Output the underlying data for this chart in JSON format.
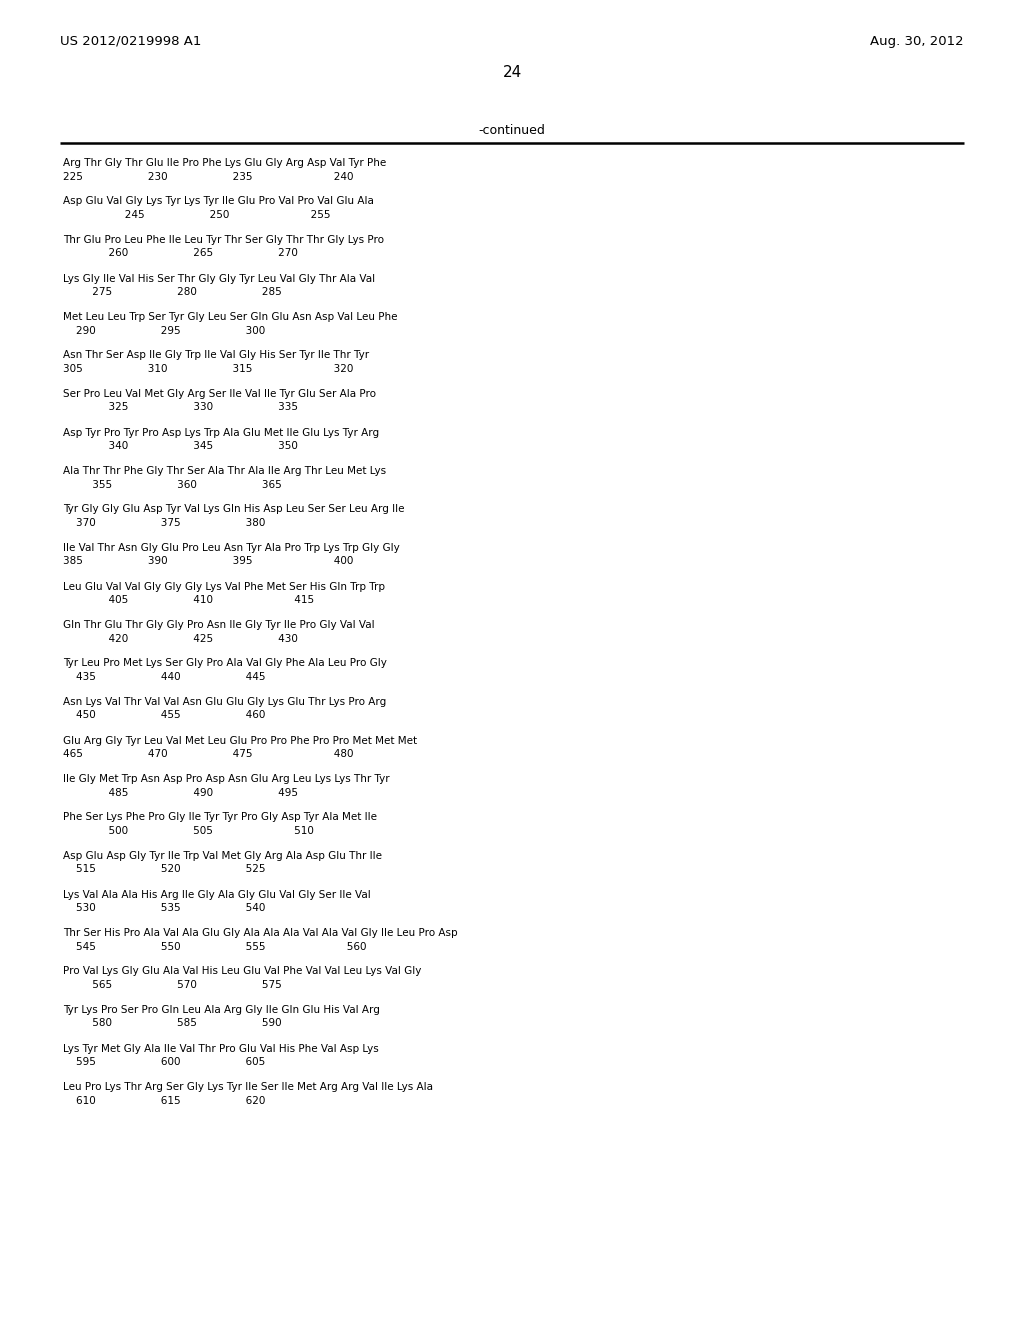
{
  "header_left": "US 2012/0219998 A1",
  "header_right": "Aug. 30, 2012",
  "page_number": "24",
  "continued_text": "-continued",
  "background_color": "#ffffff",
  "text_color": "#000000",
  "sequence_blocks": [
    {
      "aa": "Arg Thr Gly Thr Glu Ile Pro Phe Lys Glu Gly Arg Asp Val Tyr Phe",
      "num": "225                    230                    235                         240"
    },
    {
      "aa": "Asp Glu Val Gly Lys Tyr Lys Tyr Ile Glu Pro Val Pro Val Glu Ala",
      "num": "                   245                    250                         255"
    },
    {
      "aa": "Thr Glu Pro Leu Phe Ile Leu Tyr Thr Ser Gly Thr Thr Gly Lys Pro",
      "num": "              260                    265                    270"
    },
    {
      "aa": "Lys Gly Ile Val His Ser Thr Gly Gly Tyr Leu Val Gly Thr Ala Val",
      "num": "         275                    280                    285"
    },
    {
      "aa": "Met Leu Leu Trp Ser Tyr Gly Leu Ser Gln Glu Asn Asp Val Leu Phe",
      "num": "    290                    295                    300"
    },
    {
      "aa": "Asn Thr Ser Asp Ile Gly Trp Ile Val Gly His Ser Tyr Ile Thr Tyr",
      "num": "305                    310                    315                         320"
    },
    {
      "aa": "Ser Pro Leu Val Met Gly Arg Ser Ile Val Ile Tyr Glu Ser Ala Pro",
      "num": "              325                    330                    335"
    },
    {
      "aa": "Asp Tyr Pro Tyr Pro Asp Lys Trp Ala Glu Met Ile Glu Lys Tyr Arg",
      "num": "              340                    345                    350"
    },
    {
      "aa": "Ala Thr Thr Phe Gly Thr Ser Ala Thr Ala Ile Arg Thr Leu Met Lys",
      "num": "         355                    360                    365"
    },
    {
      "aa": "Tyr Gly Gly Glu Asp Tyr Val Lys Gln His Asp Leu Ser Ser Leu Arg Ile",
      "num": "    370                    375                    380"
    },
    {
      "aa": "Ile Val Thr Asn Gly Glu Pro Leu Asn Tyr Ala Pro Trp Lys Trp Gly Gly",
      "num": "385                    390                    395                         400"
    },
    {
      "aa": "Leu Glu Val Val Gly Gly Gly Lys Val Phe Met Ser His Gln Trp Trp",
      "num": "              405                    410                         415"
    },
    {
      "aa": "Gln Thr Glu Thr Gly Gly Pro Asn Ile Gly Tyr Ile Pro Gly Val Val",
      "num": "              420                    425                    430"
    },
    {
      "aa": "Tyr Leu Pro Met Lys Ser Gly Pro Ala Val Gly Phe Ala Leu Pro Gly",
      "num": "    435                    440                    445"
    },
    {
      "aa": "Asn Lys Val Thr Val Val Asn Glu Glu Gly Lys Glu Thr Lys Pro Arg",
      "num": "    450                    455                    460"
    },
    {
      "aa": "Glu Arg Gly Tyr Leu Val Met Leu Glu Pro Pro Phe Pro Pro Met Met Met",
      "num": "465                    470                    475                         480"
    },
    {
      "aa": "Ile Gly Met Trp Asn Asp Pro Asp Asn Glu Arg Leu Lys Lys Thr Tyr",
      "num": "              485                    490                    495"
    },
    {
      "aa": "Phe Ser Lys Phe Pro Gly Ile Tyr Tyr Pro Gly Asp Tyr Ala Met Ile",
      "num": "              500                    505                         510"
    },
    {
      "aa": "Asp Glu Asp Gly Tyr Ile Trp Val Met Gly Arg Ala Asp Glu Thr Ile",
      "num": "    515                    520                    525"
    },
    {
      "aa": "Lys Val Ala Ala His Arg Ile Gly Ala Gly Glu Val Gly Ser Ile Val",
      "num": "    530                    535                    540"
    },
    {
      "aa": "Thr Ser His Pro Ala Val Ala Glu Gly Ala Ala Ala Val Ala Val Gly Ile Leu Pro Asp",
      "num": "    545                    550                    555                         560"
    },
    {
      "aa": "Pro Val Lys Gly Glu Ala Val His Leu Glu Val Phe Val Val Leu Lys Val Gly",
      "num": "         565                    570                    575"
    },
    {
      "aa": "Tyr Lys Pro Ser Pro Gln Leu Ala Arg Gly Ile Gln Glu His Val Arg",
      "num": "         580                    585                    590"
    },
    {
      "aa": "Lys Tyr Met Gly Ala Ile Val Thr Pro Glu Val His Phe Val Asp Lys",
      "num": "    595                    600                    605"
    },
    {
      "aa": "Leu Pro Lys Thr Arg Ser Gly Lys Tyr Ile Ser Ile Met Arg Arg Val Ile Lys Ala",
      "num": "    610                    615                    620"
    }
  ]
}
